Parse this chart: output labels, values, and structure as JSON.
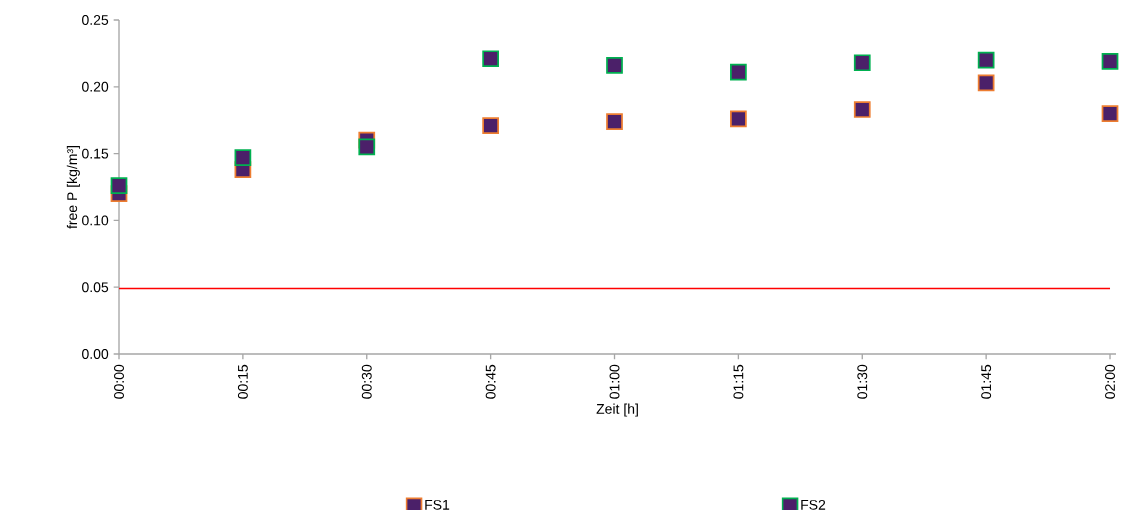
{
  "chart_data": {
    "type": "scatter",
    "xlabel": "Zeit [h]",
    "ylabel": "free P [kg/m³]",
    "x": [
      0,
      0.25,
      0.5,
      0.75,
      1,
      1.25,
      1.5,
      1.75,
      2
    ],
    "series": [
      {
        "name": "FS1",
        "color": "#ed7d31",
        "values": [
          0.12,
          0.138,
          0.16,
          0.171,
          0.174,
          0.176,
          0.183,
          0.203,
          0.18
        ]
      },
      {
        "name": "FS2",
        "color": "#00b050",
        "values": [
          0.126,
          0.147,
          0.155,
          0.221,
          0.216,
          0.211,
          0.218,
          0.22,
          0.219
        ]
      }
    ],
    "xlim": [
      0,
      2
    ],
    "xticks": [
      {
        "value": 0,
        "label": "00:00"
      },
      {
        "value": 0.25,
        "label": "00:15"
      },
      {
        "value": 0.5,
        "label": "00:30"
      },
      {
        "value": 0.75,
        "label": "00:45"
      },
      {
        "value": 1,
        "label": "01:00"
      },
      {
        "value": 1.25,
        "label": "01:15"
      },
      {
        "value": 1.5,
        "label": "01:30"
      },
      {
        "value": 1.75,
        "label": "01:45"
      },
      {
        "value": 2,
        "label": "02:00"
      }
    ],
    "ylim": [
      0,
      0.25
    ],
    "yticks": [
      {
        "value": 0,
        "label": "0.00"
      },
      {
        "value": 0.05,
        "label": "0.05"
      },
      {
        "value": 0.1,
        "label": "0.10"
      },
      {
        "value": 0.15,
        "label": "0.15"
      },
      {
        "value": 0.2,
        "label": "0.20"
      },
      {
        "value": 0.25,
        "label": "0.25"
      }
    ],
    "ref_lines": [
      {
        "axis": "y",
        "value": 0.049,
        "color": "#ff0000"
      }
    ],
    "grid": false,
    "legend": "bottom",
    "marker": "square"
  }
}
